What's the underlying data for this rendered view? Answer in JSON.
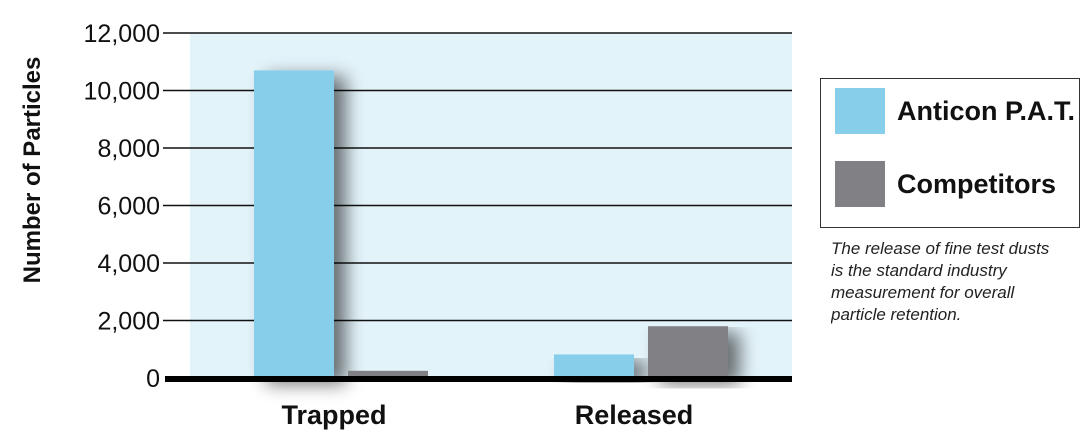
{
  "chart_data": {
    "type": "bar",
    "categories": [
      "Trapped",
      "Released"
    ],
    "series": [
      {
        "name": "Anticon P.A.T.",
        "values": [
          10700,
          820
        ],
        "color": "#87ceeb"
      },
      {
        "name": "Competitors",
        "values": [
          250,
          1800
        ],
        "color": "#808085"
      }
    ],
    "title": "",
    "xlabel": "",
    "ylabel": "Number of Particles",
    "ylim": [
      0,
      12000
    ],
    "yticks": [
      0,
      2000,
      4000,
      6000,
      8000,
      10000,
      12000
    ],
    "ytick_labels": [
      "0",
      "2,000",
      "4,000",
      "6,000",
      "8,000",
      "10,000",
      "12,000"
    ],
    "grid": true,
    "legend_position": "right",
    "plot_background": "#e3f3fa"
  },
  "note": {
    "lines": [
      "The release of fine test dusts",
      "is the standard industry",
      "measurement for overall",
      "particle retention."
    ]
  }
}
